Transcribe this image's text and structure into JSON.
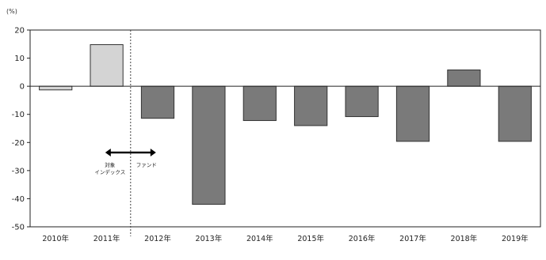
{
  "chart_data": {
    "type": "bar",
    "unit_label": "(%)",
    "categories": [
      "2010年",
      "2011年",
      "2012年",
      "2013年",
      "2014年",
      "2015年",
      "2016年",
      "2017年",
      "2018年",
      "2019年"
    ],
    "values": [
      -1.3,
      14.8,
      -11.4,
      -42.0,
      -12.2,
      -14.0,
      -10.8,
      -19.6,
      5.8,
      -19.6
    ],
    "yticks": [
      20,
      10,
      0,
      -10,
      -20,
      -30,
      -40,
      -50
    ],
    "ylim": [
      -50,
      20
    ],
    "grid": false,
    "colors": {
      "period_a": "#d4d4d4",
      "period_b": "#7a7a7a",
      "outline": "#333333",
      "axis": "#222222"
    },
    "bar_period": [
      "a",
      "a",
      "b",
      "b",
      "b",
      "b",
      "b",
      "b",
      "b",
      "b"
    ],
    "divider_after_category": "2011年",
    "annotation": {
      "left_label_line1": "対象",
      "left_label_line2": "インデックス",
      "right_label": "ファンド",
      "arrow": "double-headed"
    }
  }
}
